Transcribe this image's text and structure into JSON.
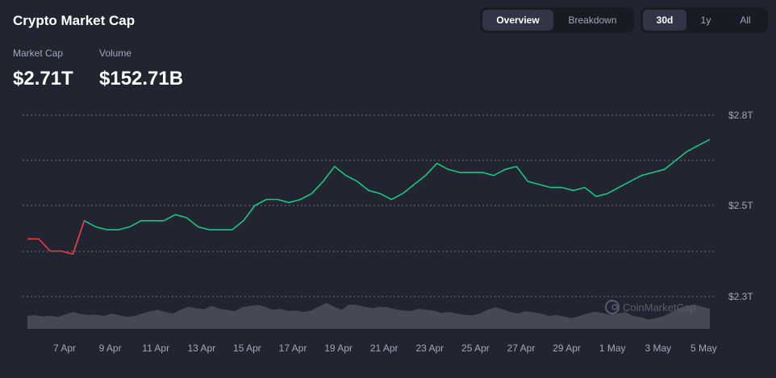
{
  "header": {
    "title": "Crypto Market Cap",
    "view_tabs": [
      {
        "label": "Overview",
        "active": true
      },
      {
        "label": "Breakdown",
        "active": false
      }
    ],
    "range_tabs": [
      {
        "label": "30d",
        "active": true
      },
      {
        "label": "1y",
        "active": false
      },
      {
        "label": "All",
        "active": false
      }
    ]
  },
  "stats": {
    "market_cap_label": "Market Cap",
    "market_cap_value": "$2.71T",
    "volume_label": "Volume",
    "volume_value": "$152.71B"
  },
  "watermark": "CoinMarketCap",
  "colors": {
    "background": "#222531",
    "up": "#16c784",
    "down": "#ea3943",
    "volume": "#4a4d58"
  },
  "chart_data": {
    "type": "line",
    "y_ticks": [
      "$2.8T",
      "$2.5T",
      "$2.3T"
    ],
    "x_ticks": [
      "7 Apr",
      "9 Apr",
      "11 Apr",
      "13 Apr",
      "15 Apr",
      "17 Apr",
      "19 Apr",
      "21 Apr",
      "23 Apr",
      "25 Apr",
      "27 Apr",
      "29 Apr",
      "1 May",
      "3 May",
      "5 May"
    ],
    "ylim": [
      2.2,
      2.8
    ],
    "grid": true,
    "series": [
      {
        "x": [
          0,
          0.5,
          1,
          1.5,
          2,
          2.5,
          3,
          3.5,
          4,
          4.5,
          5,
          5.5,
          6,
          6.5,
          7,
          7.5,
          8,
          8.5,
          9,
          9.5,
          10,
          10.5,
          11,
          11.5,
          12,
          12.5,
          13,
          13.5,
          14,
          14.5,
          15,
          15.5,
          16,
          16.5,
          17,
          17.5,
          18,
          18.5,
          19,
          19.5,
          20,
          20.5,
          21,
          21.5,
          22,
          22.5,
          23,
          23.5,
          24,
          24.5,
          25,
          25.5,
          26,
          26.5,
          27,
          27.5,
          28,
          28.5,
          29,
          29.5,
          30
        ],
        "values": [
          2.39,
          2.39,
          2.35,
          2.35,
          2.34,
          2.45,
          2.43,
          2.42,
          2.42,
          2.43,
          2.45,
          2.45,
          2.45,
          2.47,
          2.46,
          2.43,
          2.42,
          2.42,
          2.42,
          2.45,
          2.5,
          2.52,
          2.52,
          2.51,
          2.52,
          2.54,
          2.58,
          2.63,
          2.6,
          2.58,
          2.55,
          2.54,
          2.52,
          2.54,
          2.57,
          2.6,
          2.64,
          2.62,
          2.61,
          2.61,
          2.61,
          2.6,
          2.62,
          2.63,
          2.58,
          2.57,
          2.56,
          2.56,
          2.55,
          2.56,
          2.53,
          2.54,
          2.56,
          2.58,
          2.6,
          2.61,
          2.62,
          2.65,
          2.68,
          2.7,
          2.72
        ]
      }
    ],
    "volume": [
      0.42,
      0.45,
      0.4,
      0.43,
      0.39,
      0.47,
      0.55,
      0.48,
      0.45,
      0.46,
      0.42,
      0.5,
      0.44,
      0.39,
      0.42,
      0.5,
      0.58,
      0.62,
      0.55,
      0.5,
      0.62,
      0.72,
      0.68,
      0.64,
      0.75,
      0.66,
      0.62,
      0.58,
      0.7,
      0.75,
      0.78,
      0.72,
      0.62,
      0.65,
      0.58,
      0.6,
      0.55,
      0.6,
      0.72,
      0.85,
      0.72,
      0.62,
      0.8,
      0.78,
      0.72,
      0.68,
      0.72,
      0.7,
      0.64,
      0.6,
      0.58,
      0.65,
      0.62,
      0.6,
      0.52,
      0.55,
      0.5,
      0.46,
      0.44,
      0.5,
      0.62,
      0.7,
      0.64,
      0.55,
      0.5,
      0.58,
      0.54,
      0.5,
      0.42,
      0.45,
      0.4,
      0.35,
      0.42,
      0.5,
      0.56,
      0.52,
      0.46,
      0.5,
      0.55,
      0.42,
      0.38,
      0.3,
      0.35,
      0.42,
      0.55,
      0.68,
      0.75,
      0.8,
      0.72,
      0.65
    ]
  }
}
